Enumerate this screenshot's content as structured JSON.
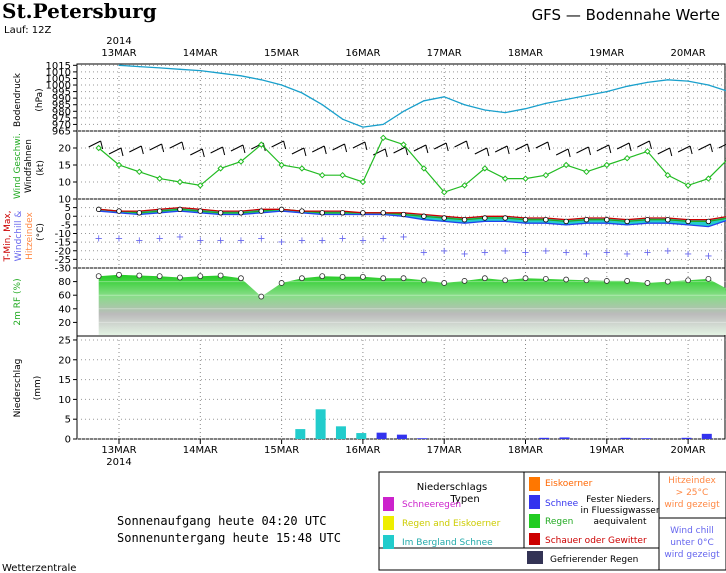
{
  "header": {
    "station": "St.Petersburg",
    "run": "Lauf: 12Z",
    "title": "GFS — Bodennahe Werte",
    "year": "2014"
  },
  "days": [
    "13MAR",
    "14MAR",
    "15MAR",
    "16MAR",
    "17MAR",
    "18MAR",
    "19MAR",
    "20MAR"
  ],
  "panels": {
    "pressure": {
      "ylabel_a": "Bodendruck",
      "ylabel_b": "(hPa)"
    },
    "wind": {
      "ylabel_a": "Wind Geschwi.",
      "ylabel_b": "Windfahnen",
      "ylabel_c": "(kt)"
    },
    "temp": {
      "ylabel_a": "T-Min, Max,",
      "ylabel_b": "Windchill &",
      "ylabel_c": "Hitzeindex",
      "ylabel_d": "(°C)"
    },
    "rh": {
      "ylabel_a": "2m RF (%)"
    },
    "precip": {
      "ylabel_a": "Niederschlag",
      "ylabel_b": "(mm)"
    }
  },
  "chart_data": [
    {
      "type": "line",
      "name": "pressure",
      "x": [
        0,
        0.25,
        0.5,
        0.75,
        1,
        1.25,
        1.5,
        1.75,
        2,
        2.25,
        2.5,
        2.75,
        3,
        3.25,
        3.5,
        3.75,
        4,
        4.25,
        4.5,
        4.75,
        5,
        5.25,
        5.5,
        5.75,
        6,
        6.25,
        6.5,
        6.75,
        7,
        7.25,
        7.5
      ],
      "values": [
        1015,
        1014,
        1013,
        1012,
        1011,
        1009,
        1007,
        1004,
        1000,
        994,
        985,
        974,
        968,
        970,
        980,
        988,
        991,
        985,
        981,
        979,
        982,
        986,
        989,
        992,
        995,
        999,
        1002,
        1004,
        1003,
        1000,
        995
      ],
      "yticks": [
        1015,
        1010,
        1005,
        1000,
        995,
        990,
        985,
        980,
        975,
        970,
        965
      ],
      "ylim": [
        965,
        1016
      ],
      "color": "#1aa0cc"
    },
    {
      "type": "line",
      "name": "wind",
      "x": [
        -0.25,
        0,
        0.25,
        0.5,
        0.75,
        1,
        1.25,
        1.5,
        1.75,
        2,
        2.25,
        2.5,
        2.75,
        3,
        3.25,
        3.5,
        3.75,
        4,
        4.25,
        4.5,
        4.75,
        5,
        5.25,
        5.5,
        5.75,
        6,
        6.25,
        6.5,
        6.75,
        7,
        7.25,
        7.5
      ],
      "values": [
        20,
        15,
        13,
        11,
        10,
        9,
        14,
        16,
        21,
        15,
        14,
        12,
        12,
        10,
        23,
        21,
        14,
        7,
        9,
        14,
        11,
        11,
        12,
        15,
        13,
        15,
        17,
        19,
        12,
        9,
        11,
        17
      ],
      "yticks": [
        10,
        15,
        20
      ],
      "ylim": [
        5,
        25
      ],
      "color": "#22bb22"
    },
    {
      "type": "line",
      "name": "temperature",
      "x": [
        -0.25,
        0,
        0.25,
        0.5,
        0.75,
        1,
        1.25,
        1.5,
        1.75,
        2,
        2.25,
        2.5,
        2.75,
        3,
        3.25,
        3.5,
        3.75,
        4,
        4.25,
        4.5,
        4.75,
        5,
        5.25,
        5.5,
        5.75,
        6,
        6.25,
        6.5,
        6.75,
        7,
        7.25,
        7.5
      ],
      "series": [
        {
          "values": [
            4,
            3,
            2,
            3,
            4,
            3,
            2,
            2,
            3,
            4,
            3,
            2,
            2,
            2,
            2,
            1,
            0,
            -1,
            -2,
            -1,
            -1,
            -2,
            -2,
            -3,
            -2,
            -2,
            -3,
            -2,
            -2,
            -3,
            -3,
            -1
          ]
        },
        {
          "values": [
            4,
            3,
            3,
            4,
            5,
            4,
            3,
            3,
            4,
            4,
            3,
            3,
            3,
            2,
            2,
            2,
            1,
            0,
            -1,
            0,
            0,
            -1,
            -1,
            -2,
            -1,
            -1,
            -2,
            -1,
            -1,
            -2,
            -2,
            0
          ]
        },
        {
          "values": [
            3,
            2,
            1,
            2,
            3,
            2,
            1,
            1,
            2,
            3,
            2,
            1,
            1,
            1,
            1,
            0,
            -2,
            -3,
            -4,
            -3,
            -3,
            -4,
            -4,
            -5,
            -4,
            -4,
            -5,
            -4,
            -4,
            -5,
            -6,
            -2
          ]
        }
      ],
      "windchill": [
        -13,
        -13,
        -14,
        -13,
        -12,
        -14,
        -14,
        -14,
        -13,
        -15,
        -14,
        -14,
        -13,
        -14,
        -13,
        -12,
        -21,
        -20,
        -22,
        -21,
        -20,
        -21,
        -20,
        -21,
        -22,
        -21,
        -22,
        -21,
        -20,
        -22,
        -23,
        -20
      ],
      "yticks": [
        10,
        5,
        0,
        -5,
        -10,
        -15,
        -20,
        -25,
        -30
      ],
      "ylim": [
        -30,
        10
      ]
    },
    {
      "type": "area",
      "name": "humidity",
      "x": [
        -0.25,
        0,
        0.25,
        0.5,
        0.75,
        1,
        1.25,
        1.5,
        1.75,
        2,
        2.25,
        2.5,
        2.75,
        3,
        3.25,
        3.5,
        3.75,
        4,
        4.25,
        4.5,
        4.75,
        5,
        5.25,
        5.5,
        5.75,
        6,
        6.25,
        6.5,
        6.75,
        7,
        7.25,
        7.5
      ],
      "values": [
        88,
        90,
        89,
        88,
        86,
        88,
        89,
        85,
        58,
        78,
        85,
        88,
        87,
        87,
        85,
        85,
        82,
        78,
        81,
        85,
        82,
        85,
        84,
        83,
        82,
        81,
        81,
        78,
        80,
        82,
        84,
        68
      ],
      "yticks": [
        20,
        40,
        60,
        80
      ],
      "ylim": [
        0,
        100
      ],
      "color": "#22cc22"
    },
    {
      "type": "bar",
      "name": "precipitation",
      "yticks": [
        0,
        5,
        10,
        15,
        20,
        25
      ],
      "ylim": [
        0,
        26
      ],
      "bars": [
        {
          "x": 2.23,
          "value": 2.5,
          "kind": "mountain_snow"
        },
        {
          "x": 2.48,
          "value": 7.5,
          "kind": "mountain_snow"
        },
        {
          "x": 2.73,
          "value": 3.2,
          "kind": "mountain_snow"
        },
        {
          "x": 2.98,
          "value": 1.5,
          "kind": "mountain_snow"
        },
        {
          "x": 3.23,
          "value": 1.6,
          "kind": "snow"
        },
        {
          "x": 3.48,
          "value": 1.1,
          "kind": "snow"
        },
        {
          "x": 3.73,
          "value": 0.2,
          "kind": "snow"
        },
        {
          "x": 5.23,
          "value": 0.3,
          "kind": "snow"
        },
        {
          "x": 5.48,
          "value": 0.4,
          "kind": "snow"
        },
        {
          "x": 6.23,
          "value": 0.3,
          "kind": "snow"
        },
        {
          "x": 6.48,
          "value": 0.2,
          "kind": "snow"
        },
        {
          "x": 6.98,
          "value": 0.3,
          "kind": "snow"
        },
        {
          "x": 7.23,
          "value": 1.3,
          "kind": "snow"
        }
      ]
    }
  ],
  "legend": {
    "title": "Niederschlags",
    "title2": "Typen",
    "items": [
      {
        "label": "Schneeregen",
        "color": "#cc22cc",
        "text_color": "#cc22cc"
      },
      {
        "label": "Regen and Eiskoerner",
        "color": "#eeee00",
        "text_color": "#cccc00"
      },
      {
        "label": "Im Bergland Schnee",
        "color": "#22cccc",
        "text_color": "#22aaaa"
      },
      {
        "label": "Eiskoerner",
        "color": "#ff7700",
        "text_color": "#ff6600"
      },
      {
        "label": "Schnee",
        "color": "#3333ee",
        "text_color": "#3333ee"
      },
      {
        "label": "Regen",
        "color": "#22cc22",
        "text_color": "#22aa22"
      },
      {
        "label": "Schauer oder Gewitter",
        "color": "#cc0000",
        "text_color": "#cc0000"
      }
    ],
    "solid_label_1": "Fester Nieders.",
    "solid_label_2": "in Fluessigwasser",
    "solid_label_3": "aequivalent",
    "freezing_label": "Gefrierender Regen",
    "freezing_color": "#333355",
    "heat_1": "Hitzeindex",
    "heat_2": "> 25°C",
    "heat_3": "wird gezeigt",
    "chill_1": "Wind chill",
    "chill_2": "unter 0°C",
    "chill_3": "wird gezeigt"
  },
  "sun": {
    "sunrise": "Sonnenaufgang heute 04:20 UTC",
    "sunset": "Sonnenuntergang heute 15:48 UTC"
  },
  "footer": "Wetterzentrale"
}
